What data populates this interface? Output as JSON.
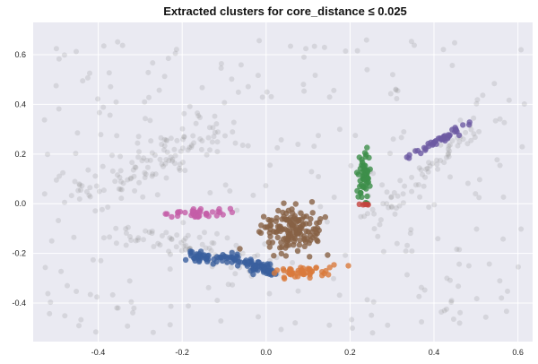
{
  "chart_data": {
    "type": "scatter",
    "title": "Extracted clusters for core_distance ≤ 0.025",
    "xlabel": "",
    "ylabel": "",
    "xlim": [
      -0.555,
      0.635
    ],
    "ylim": [
      -0.555,
      0.73
    ],
    "xticks": [
      "-0.4",
      "-0.2",
      "0.0",
      "0.2",
      "0.4",
      "0.6"
    ],
    "yticks": [
      "-0.4",
      "-0.2",
      "0.0",
      "0.2",
      "0.4",
      "0.6"
    ],
    "grid": true,
    "legend": "none",
    "background_color": "#eaeaf2",
    "grid_color": "#ffffff",
    "noise_color": "#9a9a9a",
    "series": [
      {
        "role": "noise",
        "color": "#8c8c8c",
        "opacity": 0.22,
        "x_range": [
          -0.53,
          0.62
        ],
        "y_range": [
          -0.52,
          0.66
        ],
        "count": 520
      },
      {
        "role": "cluster",
        "color": "#c45ea8",
        "center": [
          -0.17,
          -0.04
        ],
        "spread": [
          0.035,
          0.009
        ],
        "tilt": 0.08,
        "count": 40
      },
      {
        "role": "cluster",
        "color": "#3a5f9e",
        "polyline": [
          [
            -0.19,
            -0.215
          ],
          [
            -0.1,
            -0.215
          ],
          [
            -0.03,
            -0.24
          ],
          [
            0.01,
            -0.28
          ]
        ],
        "jitter": 0.01,
        "count": 110
      },
      {
        "role": "cluster",
        "color": "#876245",
        "center": [
          0.06,
          -0.1
        ],
        "spread": [
          0.038,
          0.045
        ],
        "tilt": 0,
        "count": 150
      },
      {
        "role": "cluster",
        "color": "#d97a3c",
        "center": [
          0.08,
          -0.275
        ],
        "spread": [
          0.033,
          0.011
        ],
        "tilt": 0.1,
        "count": 50
      },
      {
        "role": "cluster",
        "color": "#3d8f4a",
        "center": [
          0.235,
          0.095
        ],
        "spread": [
          0.009,
          0.055
        ],
        "tilt": 0,
        "count": 55
      },
      {
        "role": "cluster",
        "color": "#c4423d",
        "center": [
          0.232,
          -0.003
        ],
        "spread": [
          0.007,
          0.004
        ],
        "tilt": 0,
        "count": 5
      },
      {
        "role": "cluster",
        "color": "#6d5aa2",
        "center": [
          0.405,
          0.25
        ],
        "spread": [
          0.032,
          0.008
        ],
        "tilt": 0.95,
        "count": 45
      }
    ]
  }
}
